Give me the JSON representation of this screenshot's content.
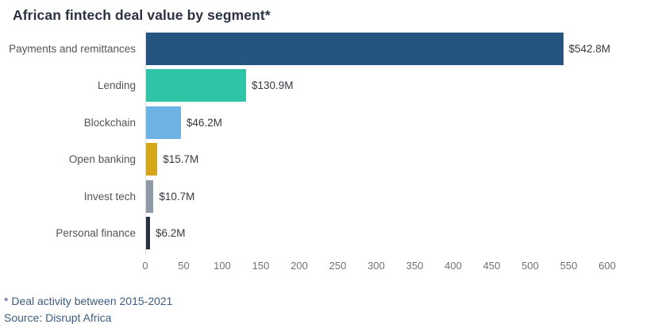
{
  "chart_data": {
    "type": "bar",
    "orientation": "horizontal",
    "title": "African fintech deal value by segment*",
    "categories": [
      "Payments and remittances",
      "Lending",
      "Blockchain",
      "Open banking",
      "Invest tech",
      "Personal finance"
    ],
    "values": [
      542.8,
      130.9,
      46.2,
      15.7,
      10.7,
      6.2
    ],
    "value_labels": [
      "$542.8M",
      "$130.9M",
      "$46.2M",
      "$15.7M",
      "$10.7M",
      "$6.2M"
    ],
    "bar_colors": [
      "#24547F",
      "#2EC4A6",
      "#6CB2E3",
      "#D5A617",
      "#8E9AA7",
      "#27303F"
    ],
    "x_ticks": [
      0,
      50,
      100,
      150,
      200,
      250,
      300,
      350,
      400,
      450,
      500,
      550,
      600
    ],
    "xlim": [
      0,
      660
    ],
    "grid": "off",
    "legend": "none",
    "footnote": "* Deal activity between 2015-2021",
    "source": "Source: Disrupt Africa"
  },
  "colors": {
    "title_text": "#2B3240",
    "category_label": "#545454",
    "value_label": "#35393F",
    "tick_label": "#6E7278",
    "axis_line": "#D7DADE",
    "footer_text": "#3D5C7E",
    "background": "#FFFFFF"
  }
}
